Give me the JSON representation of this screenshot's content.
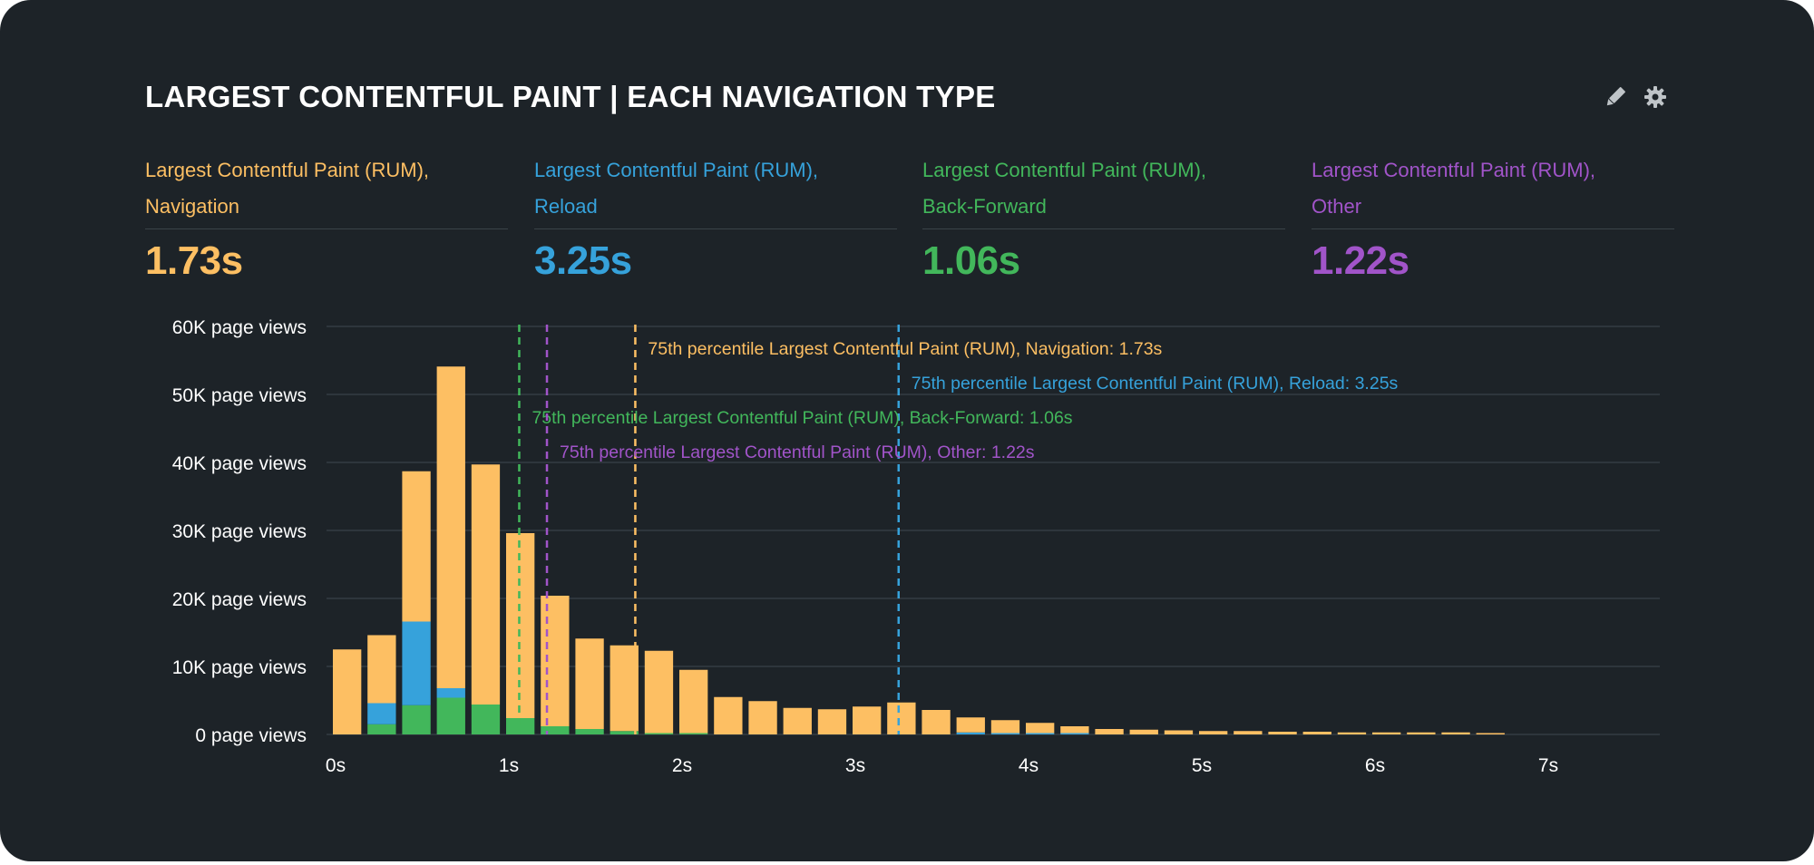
{
  "title": "LARGEST CONTENTFUL PAINT | EACH NAVIGATION TYPE",
  "icons": [
    "pencil-icon",
    "gear-icon"
  ],
  "colors": {
    "background": "#1d2328",
    "navigation": "#fdbf63",
    "reload": "#36a2db",
    "back_forward": "#42b75b",
    "other": "#a154c9",
    "text": "#ffffff",
    "grid": "#3a4349"
  },
  "metrics": [
    {
      "label_line1": "Largest Contentful Paint (RUM),",
      "label_line2": "Navigation",
      "value": "1.73s",
      "color": "#fdbf63"
    },
    {
      "label_line1": "Largest Contentful Paint (RUM),",
      "label_line2": "Reload",
      "value": "3.25s",
      "color": "#36a2db"
    },
    {
      "label_line1": "Largest Contentful Paint (RUM),",
      "label_line2": "Back-Forward",
      "value": "1.06s",
      "color": "#42b75b"
    },
    {
      "label_line1": "Largest Contentful Paint (RUM),",
      "label_line2": "Other",
      "value": "1.22s",
      "color": "#a154c9"
    }
  ],
  "chart_data": {
    "type": "bar",
    "stacked": true,
    "bin_width": 0.2,
    "x": [
      0.0,
      0.2,
      0.4,
      0.6,
      0.8,
      1.0,
      1.2,
      1.4,
      1.6,
      1.8,
      2.0,
      2.2,
      2.4,
      2.6,
      2.8,
      3.0,
      3.2,
      3.4,
      3.6,
      3.8,
      4.0,
      4.2,
      4.4,
      4.6,
      4.8,
      5.0,
      5.2,
      5.4,
      5.6,
      5.8,
      6.0,
      6.2,
      6.4,
      6.6
    ],
    "series": [
      {
        "name": "Back-Forward",
        "color": "#42b75b",
        "values": [
          0,
          1500,
          4300,
          5400,
          4400,
          2400,
          1200,
          800,
          500,
          200,
          200,
          0,
          0,
          0,
          0,
          0,
          0,
          0,
          0,
          0,
          0,
          0,
          0,
          0,
          0,
          0,
          0,
          0,
          0,
          0,
          0,
          0,
          0,
          0
        ]
      },
      {
        "name": "Reload",
        "color": "#36a2db",
        "values": [
          0,
          3100,
          12300,
          1400,
          0,
          0,
          0,
          0,
          0,
          0,
          0,
          0,
          0,
          0,
          0,
          0,
          0,
          0,
          300,
          200,
          200,
          200,
          0,
          0,
          0,
          0,
          0,
          0,
          0,
          0,
          0,
          0,
          0,
          0
        ]
      },
      {
        "name": "Navigation",
        "color": "#fdbf63",
        "values": [
          12500,
          10000,
          22100,
          47300,
          35300,
          27200,
          19200,
          13300,
          12600,
          12100,
          9300,
          5500,
          4900,
          3900,
          3700,
          4100,
          4700,
          3600,
          2200,
          1900,
          1500,
          1000,
          800,
          700,
          600,
          500,
          500,
          400,
          400,
          300,
          300,
          300,
          300,
          200
        ]
      }
    ],
    "y_ticks": [
      "0 page views",
      "10K page views",
      "20K page views",
      "30K page views",
      "40K page views",
      "50K page views",
      "60K page views"
    ],
    "x_ticks": [
      "0s",
      "1s",
      "2s",
      "3s",
      "4s",
      "5s",
      "6s",
      "7s"
    ],
    "ylim": [
      0,
      60000
    ],
    "xlim": [
      0,
      7.7
    ],
    "percentile_lines": [
      {
        "value": 1.73,
        "color": "#fdbf63",
        "label": "75th percentile Largest Contentful Paint (RUM), Navigation: 1.73s"
      },
      {
        "value": 3.25,
        "color": "#36a2db",
        "label": "75th percentile Largest Contentful Paint (RUM), Reload: 3.25s"
      },
      {
        "value": 1.06,
        "color": "#42b75b",
        "label": "75th percentile Largest Contentful Paint (RUM), Back-Forward: 1.06s"
      },
      {
        "value": 1.22,
        "color": "#a154c9",
        "label": "75th percentile Largest Contentful Paint (RUM), Other: 1.22s"
      }
    ],
    "grid": true
  }
}
